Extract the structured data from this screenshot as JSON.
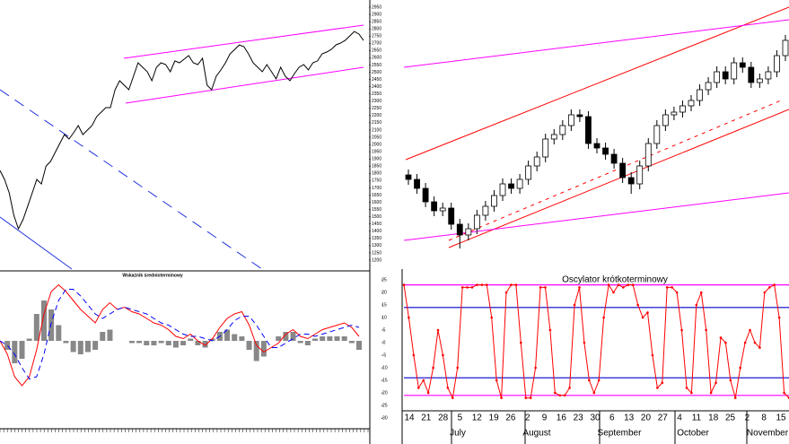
{
  "chart_data": [
    {
      "type": "line",
      "color": "#000000",
      "values": [
        1820,
        1758,
        1665,
        1510,
        1417,
        1479,
        1572,
        1665,
        1758,
        1727,
        1851,
        1883,
        1945,
        2007,
        2069,
        2038,
        2081,
        2131,
        2069,
        2100,
        2131,
        2193,
        2224,
        2255,
        2255,
        2379,
        2441,
        2410,
        2379,
        2472,
        2565,
        2534,
        2503,
        2441,
        2534,
        2565,
        2553,
        2503,
        2578,
        2565,
        2590,
        2615,
        2565,
        2553,
        2596,
        2410,
        2379,
        2472,
        2516,
        2565,
        2627,
        2658,
        2689,
        2677,
        2627,
        2565,
        2534,
        2503,
        2553,
        2503,
        2454,
        2534,
        2472,
        2441,
        2491,
        2534,
        2553,
        2516,
        2565,
        2578,
        2627,
        2640,
        2658,
        2689,
        2702,
        2720,
        2751,
        2782,
        2764,
        2720
      ],
      "ylim": [
        1200,
        2950
      ],
      "yticks": [
        2950,
        2900,
        2850,
        2800,
        2750,
        2700,
        2650,
        2600,
        2550,
        2500,
        2450,
        2400,
        2350,
        2300,
        2250,
        2200,
        2150,
        2100,
        2050,
        2000,
        1950,
        1900,
        1850,
        1800,
        1750,
        1700,
        1650,
        1600,
        1550,
        1500,
        1450,
        1400,
        1350,
        1300,
        1250,
        1200
      ]
    },
    {
      "type": "macd",
      "title": "Wskaźnik średnioterminowy",
      "ylim": [
        -30,
        30
      ],
      "series": [
        {
          "color": "#ff0000",
          "values": [
            0,
            -6,
            -16,
            -20,
            -16,
            -4,
            12,
            22,
            25,
            22,
            18,
            14,
            11,
            8,
            14,
            17,
            14,
            15,
            13,
            12,
            10,
            8,
            7,
            5,
            2,
            1,
            3,
            0,
            -2,
            1,
            6,
            10,
            12,
            13,
            7,
            -2,
            -5,
            -3,
            -1,
            3,
            5,
            2,
            1,
            3,
            5,
            6,
            7,
            8,
            6,
            2
          ]
        },
        {
          "color": "#0000ff",
          "dashed": true,
          "values": [
            0,
            -2,
            -6,
            -12,
            -17,
            -16,
            -6,
            8,
            18,
            23,
            23,
            20,
            16,
            12,
            10,
            12,
            14,
            15,
            14,
            13,
            12,
            10,
            8,
            7,
            5,
            3,
            2,
            2,
            1,
            0,
            2,
            5,
            9,
            11,
            11,
            7,
            2,
            -3,
            -3,
            -1,
            1,
            3,
            3,
            2,
            3,
            4,
            5,
            6,
            7,
            6
          ]
        }
      ],
      "histogram": {
        "color": "#888888",
        "values": [
          0,
          -4,
          -10,
          -8,
          1,
          12,
          18,
          14,
          7,
          -1,
          -5,
          -6,
          -5,
          -4,
          4,
          5,
          0,
          0,
          -1,
          -1,
          -2,
          -2,
          -1,
          -2,
          -3,
          -2,
          1,
          -2,
          -3,
          1,
          4,
          5,
          3,
          2,
          -4,
          -9,
          -7,
          0,
          2,
          4,
          4,
          -1,
          -2,
          1,
          2,
          2,
          2,
          2,
          -1,
          -4
        ]
      }
    },
    {
      "type": "candlestick",
      "ylim": [
        1500,
        3000
      ],
      "up_color": "#ffffff",
      "down_color": "#000000",
      "open": [
        2025,
        2000,
        1950,
        1875,
        1825,
        1840,
        1750,
        1690,
        1725,
        1800,
        1850,
        1910,
        1975,
        1950,
        2000,
        2075,
        2125,
        2225,
        2250,
        2300,
        2360,
        2350,
        2200,
        2175,
        2140,
        2090,
        2010,
        1975,
        2075,
        2200,
        2300,
        2360,
        2375,
        2410,
        2440,
        2500,
        2540,
        2600,
        2560,
        2650,
        2625,
        2540,
        2560,
        2600,
        2690
      ],
      "high": [
        2055,
        2030,
        1980,
        1905,
        1870,
        1870,
        1780,
        1755,
        1830,
        1880,
        1940,
        2005,
        2005,
        2030,
        2105,
        2155,
        2255,
        2280,
        2330,
        2390,
        2390,
        2380,
        2230,
        2205,
        2170,
        2120,
        2040,
        2105,
        2230,
        2330,
        2390,
        2405,
        2440,
        2470,
        2530,
        2570,
        2630,
        2630,
        2680,
        2680,
        2655,
        2590,
        2630,
        2720,
        2805
      ],
      "low": [
        1970,
        1920,
        1845,
        1795,
        1795,
        1720,
        1615,
        1660,
        1695,
        1770,
        1820,
        1880,
        1920,
        1920,
        1970,
        2045,
        2095,
        2195,
        2220,
        2270,
        2320,
        2170,
        2145,
        2110,
        2060,
        1980,
        1920,
        1945,
        2045,
        2170,
        2270,
        2330,
        2345,
        2380,
        2410,
        2470,
        2510,
        2530,
        2530,
        2595,
        2510,
        2510,
        2530,
        2570,
        2660
      ],
      "close": [
        2000,
        1950,
        1875,
        1825,
        1840,
        1750,
        1690,
        1725,
        1800,
        1850,
        1910,
        1975,
        1950,
        2000,
        2075,
        2125,
        2225,
        2250,
        2300,
        2360,
        2350,
        2200,
        2175,
        2140,
        2090,
        2010,
        1975,
        2075,
        2200,
        2300,
        2360,
        2375,
        2410,
        2440,
        2500,
        2540,
        2600,
        2560,
        2650,
        2625,
        2540,
        2560,
        2600,
        2690,
        2775
      ]
    },
    {
      "type": "line",
      "title": "Oscylator krótkoterminowy",
      "color": "#ff0000",
      "ylim": [
        -35,
        30
      ],
      "yticks": [
        25,
        20,
        15,
        10,
        5,
        0,
        -5,
        -10,
        -15,
        -20,
        -25,
        -30
      ],
      "levels": [
        {
          "value": 23,
          "color": "#ff00ff"
        },
        {
          "value": 14,
          "color": "#0000cc"
        },
        {
          "value": -14,
          "color": "#0000cc"
        },
        {
          "value": -21,
          "color": "#ff00ff"
        }
      ],
      "values": [
        23,
        10,
        -5,
        -18,
        -15,
        -20,
        -10,
        5,
        -5,
        -18,
        -22,
        -10,
        22,
        22,
        22,
        23,
        23,
        23,
        10,
        -15,
        -22,
        20,
        23,
        23,
        0,
        -22,
        -22,
        -10,
        22,
        22,
        5,
        -20,
        -21,
        -21,
        -18,
        15,
        22,
        0,
        -15,
        -20,
        -15,
        10,
        23,
        20,
        23,
        22,
        23,
        23,
        15,
        10,
        12,
        -5,
        -18,
        -16,
        22,
        22,
        20,
        5,
        -18,
        -20,
        15,
        20,
        5,
        -20,
        -16,
        2,
        0,
        -15,
        -22,
        -10,
        0,
        5,
        0,
        -2,
        20,
        22,
        23,
        10,
        -20,
        -22
      ],
      "x_labels": [
        "14",
        "21",
        "28",
        "5",
        "12",
        "19",
        "26",
        "2",
        "9",
        "16",
        "23",
        "30",
        "6",
        "13",
        "20",
        "27",
        "4",
        "11",
        "18",
        "25",
        "2",
        "8",
        "15"
      ],
      "months": [
        "July",
        "August",
        "September",
        "October",
        "November"
      ]
    }
  ]
}
